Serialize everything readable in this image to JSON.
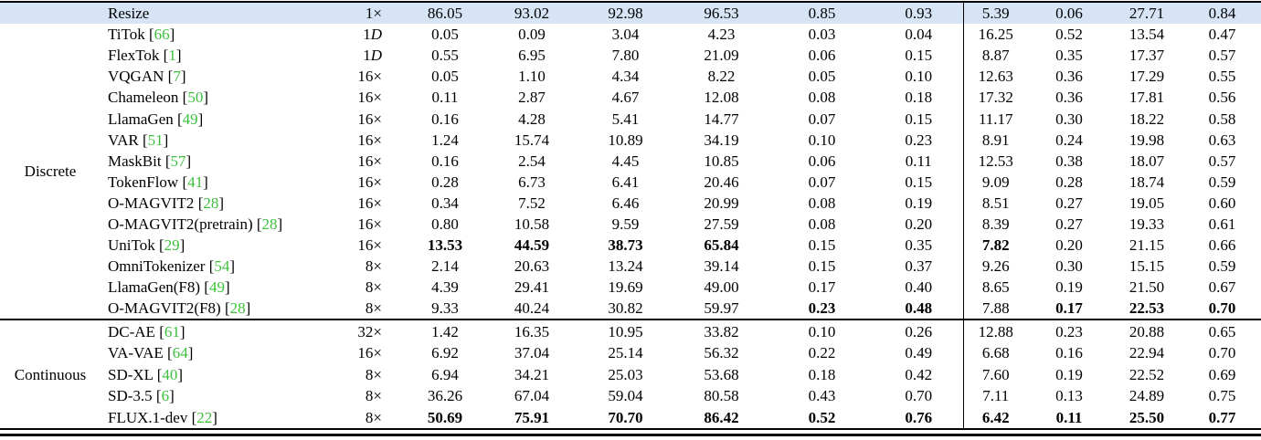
{
  "table": {
    "type": "table",
    "colors": {
      "highlight_row_bg": "#d6e4f5",
      "citation_green": "#3dc03d",
      "rule_black": "#000000"
    },
    "groups": [
      {
        "label": "Discrete",
        "label_row": 1,
        "rows": [
          {
            "method": "Resize",
            "cite": null,
            "ratio": "1×",
            "highlight": true,
            "values": [
              "86.05",
              "93.02",
              "92.98",
              "96.53",
              "0.85",
              "0.93",
              "5.39",
              "0.06",
              "27.71",
              "0.84"
            ],
            "bold_values": []
          },
          {
            "method": "TiTok",
            "cite": "66",
            "ratio": "1D",
            "values": [
              "0.05",
              "0.09",
              "3.04",
              "4.23",
              "0.03",
              "0.04",
              "16.25",
              "0.52",
              "13.54",
              "0.47"
            ],
            "bold_values": []
          },
          {
            "method": "FlexTok",
            "cite": "1",
            "ratio": "1D",
            "values": [
              "0.55",
              "6.95",
              "7.80",
              "21.09",
              "0.06",
              "0.15",
              "8.87",
              "0.35",
              "17.37",
              "0.57"
            ],
            "bold_values": []
          },
          {
            "method": "VQGAN",
            "cite": "7",
            "ratio": "16×",
            "values": [
              "0.05",
              "1.10",
              "4.34",
              "8.22",
              "0.05",
              "0.10",
              "12.63",
              "0.36",
              "17.29",
              "0.55"
            ],
            "bold_values": []
          },
          {
            "method": "Chameleon",
            "cite": "50",
            "ratio": "16×",
            "values": [
              "0.11",
              "2.87",
              "4.67",
              "12.08",
              "0.08",
              "0.18",
              "17.32",
              "0.36",
              "17.81",
              "0.56"
            ],
            "bold_values": []
          },
          {
            "method": "LlamaGen",
            "cite": "49",
            "ratio": "16×",
            "values": [
              "0.16",
              "4.28",
              "5.41",
              "14.77",
              "0.07",
              "0.15",
              "11.17",
              "0.30",
              "18.22",
              "0.58"
            ],
            "bold_values": []
          },
          {
            "method": "VAR",
            "cite": "51",
            "ratio": "16×",
            "values": [
              "1.24",
              "15.74",
              "10.89",
              "34.19",
              "0.10",
              "0.23",
              "8.91",
              "0.24",
              "19.98",
              "0.63"
            ],
            "bold_values": []
          },
          {
            "method": "MaskBit",
            "cite": "57",
            "ratio": "16×",
            "values": [
              "0.16",
              "2.54",
              "4.45",
              "10.85",
              "0.06",
              "0.11",
              "12.53",
              "0.38",
              "18.07",
              "0.57"
            ],
            "bold_values": []
          },
          {
            "method": "TokenFlow",
            "cite": "41",
            "ratio": "16×",
            "values": [
              "0.28",
              "6.73",
              "6.41",
              "20.46",
              "0.07",
              "0.15",
              "9.09",
              "0.28",
              "18.74",
              "0.59"
            ],
            "bold_values": []
          },
          {
            "method": "O-MAGVIT2",
            "cite": "28",
            "ratio": "16×",
            "values": [
              "0.34",
              "7.52",
              "6.46",
              "20.99",
              "0.08",
              "0.19",
              "8.51",
              "0.27",
              "19.05",
              "0.60"
            ],
            "bold_values": []
          },
          {
            "method": "O-MAGVIT2(pretrain)",
            "cite": "28",
            "ratio": "16×",
            "values": [
              "0.80",
              "10.58",
              "9.59",
              "27.59",
              "0.08",
              "0.20",
              "8.39",
              "0.27",
              "19.33",
              "0.61"
            ],
            "bold_values": []
          },
          {
            "method": "UniTok",
            "cite": "29",
            "ratio": "16×",
            "values": [
              "13.53",
              "44.59",
              "38.73",
              "65.84",
              "0.15",
              "0.35",
              "7.82",
              "0.20",
              "21.15",
              "0.66"
            ],
            "bold_values": [
              0,
              1,
              2,
              3,
              6
            ]
          },
          {
            "method": "OmniTokenizer",
            "cite": "54",
            "ratio": "8×",
            "values": [
              "2.14",
              "20.63",
              "13.24",
              "39.14",
              "0.15",
              "0.37",
              "9.26",
              "0.30",
              "15.15",
              "0.59"
            ],
            "bold_values": []
          },
          {
            "method": "LlamaGen(F8)",
            "cite": "49",
            "ratio": "8×",
            "values": [
              "4.39",
              "29.41",
              "19.69",
              "49.00",
              "0.17",
              "0.40",
              "8.65",
              "0.19",
              "21.50",
              "0.67"
            ],
            "bold_values": []
          },
          {
            "method": "O-MAGVIT2(F8)",
            "cite": "28",
            "ratio": "8×",
            "values": [
              "9.33",
              "40.24",
              "30.82",
              "59.97",
              "0.23",
              "0.48",
              "7.88",
              "0.17",
              "22.53",
              "0.70"
            ],
            "bold_values": [
              4,
              5,
              7,
              8,
              9
            ]
          }
        ]
      },
      {
        "label": "Continuous",
        "label_row": 0,
        "rows": [
          {
            "method": "DC-AE",
            "cite": "61",
            "ratio": "32×",
            "values": [
              "1.42",
              "16.35",
              "10.95",
              "33.82",
              "0.10",
              "0.26",
              "12.88",
              "0.23",
              "20.88",
              "0.65"
            ],
            "bold_values": []
          },
          {
            "method": "VA-VAE",
            "cite": "64",
            "ratio": "16×",
            "values": [
              "6.92",
              "37.04",
              "25.14",
              "56.32",
              "0.22",
              "0.49",
              "6.68",
              "0.16",
              "22.94",
              "0.70"
            ],
            "bold_values": []
          },
          {
            "method": "SD-XL",
            "cite": "40",
            "ratio": "8×",
            "values": [
              "6.94",
              "34.21",
              "25.03",
              "53.68",
              "0.18",
              "0.42",
              "7.60",
              "0.19",
              "22.52",
              "0.69"
            ],
            "bold_values": []
          },
          {
            "method": "SD-3.5",
            "cite": "6",
            "ratio": "8×",
            "values": [
              "36.26",
              "67.04",
              "59.04",
              "80.58",
              "0.43",
              "0.70",
              "7.11",
              "0.13",
              "24.89",
              "0.75"
            ],
            "bold_values": []
          },
          {
            "method": "FLUX.1-dev",
            "cite": "22",
            "ratio": "8×",
            "values": [
              "50.69",
              "75.91",
              "70.70",
              "86.42",
              "0.52",
              "0.76",
              "6.42",
              "0.11",
              "25.50",
              "0.77"
            ],
            "bold_values": [
              0,
              1,
              2,
              3,
              4,
              5,
              6,
              7,
              8,
              9
            ]
          }
        ]
      }
    ]
  }
}
